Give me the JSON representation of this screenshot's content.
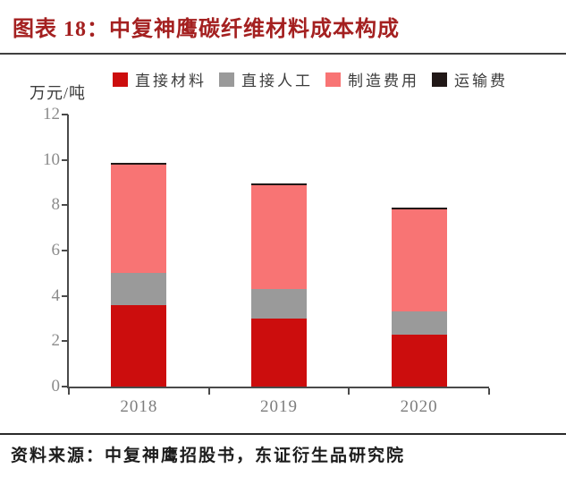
{
  "header": {
    "title": "图表 18：中复神鹰碳纤维材料成本构成"
  },
  "chart_data": {
    "type": "bar",
    "subtype": "stacked",
    "title": "中复神鹰碳纤维材料成本构成",
    "ylabel": "万元/吨",
    "xlabel": "",
    "ylim": [
      0,
      12
    ],
    "yticks": [
      0,
      2,
      4,
      6,
      8,
      10,
      12
    ],
    "grid": false,
    "legend_position": "top",
    "categories": [
      "2018",
      "2019",
      "2020"
    ],
    "series": [
      {
        "name": "直接材料",
        "color": "#cc0d0d",
        "values": [
          3.6,
          3.0,
          2.3
        ]
      },
      {
        "name": "直接人工",
        "color": "#9a9a9a",
        "values": [
          1.4,
          1.3,
          1.0
        ]
      },
      {
        "name": "制造费用",
        "color": "#f87474",
        "values": [
          4.8,
          4.6,
          4.5
        ]
      },
      {
        "name": "运输费",
        "color": "#211817",
        "values": [
          0.05,
          0.05,
          0.1
        ]
      }
    ],
    "totals": [
      9.85,
      8.95,
      7.9
    ]
  },
  "footer": {
    "source": "资料来源：中复神鹰招股书，东证衍生品研究院"
  },
  "colors": {
    "title_red": "#a42020",
    "axis": "#4a4a4a",
    "tick_label_gray": "#8b8b8b",
    "bar_red": "#cc0d0d",
    "bar_gray": "#9a9a9a",
    "bar_pink": "#f87474",
    "bar_black": "#211817"
  }
}
